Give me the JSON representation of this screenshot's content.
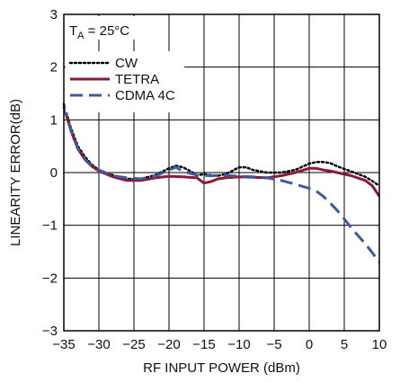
{
  "chart_data": {
    "type": "line",
    "xlabel": "RF INPUT POWER (dBm)",
    "ylabel": "LINEARITY ERROR(dB)",
    "xlim": [
      -35,
      10
    ],
    "ylim": [
      -3,
      3
    ],
    "x_ticks": [
      -35,
      -30,
      -25,
      -20,
      -15,
      -10,
      -5,
      0,
      5,
      10
    ],
    "y_ticks": [
      -3,
      -2,
      -1,
      0,
      1,
      2,
      3
    ],
    "x_tick_labels": [
      "−35",
      "−30",
      "−25",
      "−20",
      "−15",
      "−10",
      "−5",
      "0",
      "5",
      "10"
    ],
    "y_tick_labels": [
      "−3",
      "−2",
      "−1",
      "0",
      "1",
      "2",
      "3"
    ],
    "grid": true,
    "legend_position": "top-left",
    "condition_label": {
      "prefix": "T",
      "subscript": "A",
      "suffix": " = 25°C"
    },
    "series": [
      {
        "name": "CW",
        "color": "#000000",
        "style": "dotted",
        "x": [
          -35,
          -34,
          -33,
          -32,
          -31,
          -30,
          -28,
          -26,
          -24,
          -22,
          -20,
          -19,
          -18,
          -17,
          -16,
          -15,
          -14,
          -13,
          -12,
          -11,
          -10,
          -9,
          -8,
          -6,
          -4,
          -2,
          0,
          1,
          2,
          3,
          4,
          6,
          8,
          9,
          10
        ],
        "y": [
          1.3,
          0.85,
          0.5,
          0.3,
          0.15,
          0.05,
          -0.05,
          -0.12,
          -0.12,
          -0.05,
          0.08,
          0.13,
          0.1,
          0.03,
          -0.05,
          -0.03,
          -0.05,
          -0.06,
          -0.03,
          0.03,
          0.1,
          0.1,
          0.05,
          0.0,
          0.0,
          0.05,
          0.17,
          0.2,
          0.2,
          0.18,
          0.12,
          0.02,
          -0.08,
          -0.16,
          -0.25
        ]
      },
      {
        "name": "TETRA",
        "color": "#8b1a34",
        "style": "solid",
        "x": [
          -35,
          -34,
          -33,
          -32,
          -31,
          -30,
          -28,
          -26,
          -24,
          -22,
          -20,
          -18,
          -16,
          -15,
          -14,
          -13,
          -12,
          -10,
          -8,
          -6,
          -4,
          -2,
          0,
          1,
          2,
          3,
          4,
          6,
          8,
          9,
          10
        ],
        "y": [
          1.25,
          0.8,
          0.45,
          0.25,
          0.12,
          0.03,
          -0.08,
          -0.15,
          -0.15,
          -0.1,
          -0.07,
          -0.08,
          -0.1,
          -0.2,
          -0.17,
          -0.12,
          -0.1,
          -0.08,
          -0.09,
          -0.1,
          -0.06,
          0.0,
          0.08,
          0.08,
          0.05,
          0.03,
          0.0,
          -0.06,
          -0.15,
          -0.25,
          -0.45
        ]
      },
      {
        "name": "CDMA 4C",
        "color": "#3d5a9e",
        "style": "dashed",
        "x": [
          -35,
          -34,
          -33,
          -32,
          -31,
          -30,
          -28,
          -26,
          -24,
          -22,
          -20,
          -19,
          -18,
          -16,
          -14,
          -12,
          -10,
          -8,
          -6,
          -4,
          -2,
          0,
          1,
          2,
          3,
          4,
          5,
          6,
          7,
          8,
          9,
          10
        ],
        "y": [
          1.3,
          0.8,
          0.45,
          0.25,
          0.12,
          0.05,
          -0.06,
          -0.1,
          -0.12,
          -0.07,
          0.05,
          0.1,
          0.02,
          -0.05,
          -0.06,
          -0.05,
          -0.07,
          -0.08,
          -0.1,
          -0.15,
          -0.22,
          -0.3,
          -0.35,
          -0.45,
          -0.58,
          -0.72,
          -0.88,
          -1.05,
          -1.2,
          -1.35,
          -1.52,
          -1.7
        ]
      }
    ]
  }
}
